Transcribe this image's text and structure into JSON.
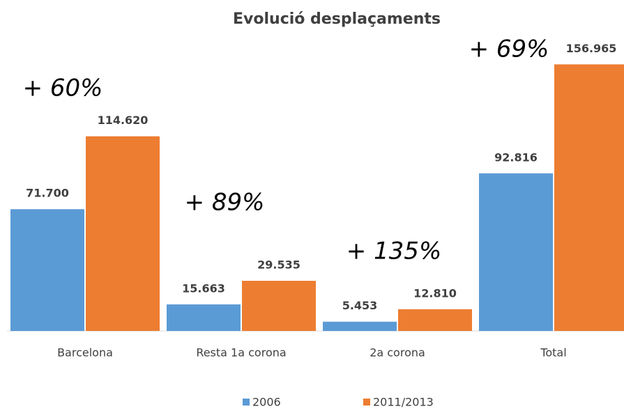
{
  "chart_data": {
    "type": "bar",
    "title": "Evolució desplaçaments",
    "categories": [
      "Barcelona",
      "Resta 1a corona",
      "2a corona",
      "Total"
    ],
    "series": [
      {
        "name": "2006",
        "color": "#5b9bd5",
        "values": [
          71700,
          15663,
          5453,
          92816
        ],
        "value_labels": [
          "71.700",
          "15.663",
          "5.453",
          "92.816"
        ]
      },
      {
        "name": "2011/2013",
        "color": "#ed7d31",
        "values": [
          114620,
          29535,
          12810,
          156965
        ],
        "value_labels": [
          "114.620",
          "29.535",
          "12.810",
          "156.965"
        ]
      }
    ],
    "annotations": [
      "+ 60%",
      "+ 89%",
      "+ 135%",
      "+ 69%"
    ],
    "ylim": [
      0,
      160000
    ],
    "grid": false
  }
}
